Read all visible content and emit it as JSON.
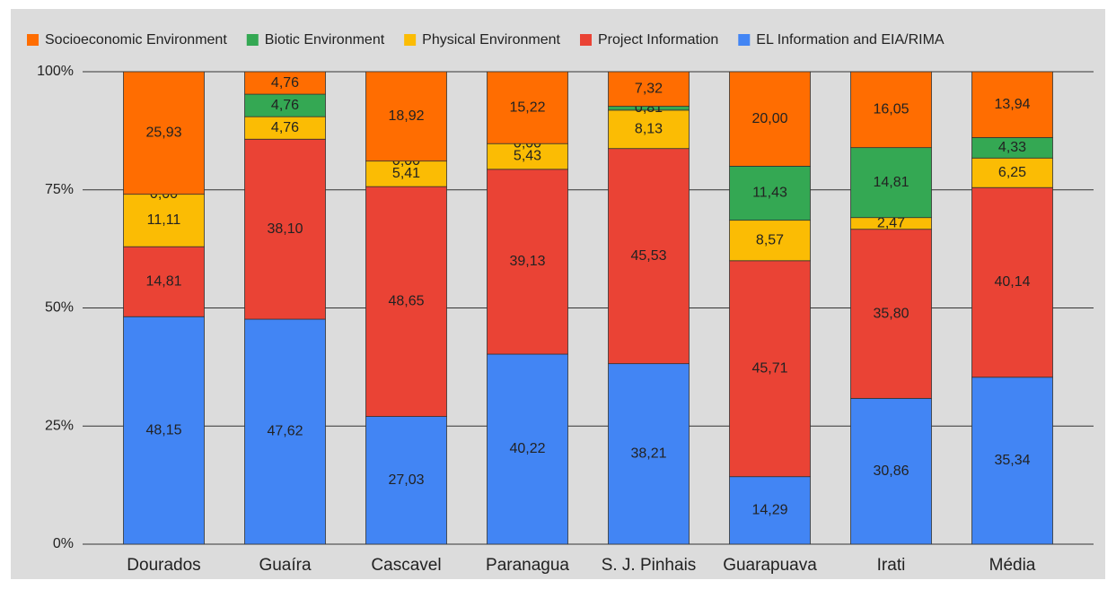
{
  "chart_data": {
    "type": "stacked_bar",
    "categories": [
      "Dourados",
      "Guaíra",
      "Cascavel",
      "Paranagua",
      "S. J. Pinhais",
      "Guarapuava",
      "Irati",
      "Média"
    ],
    "series": [
      {
        "name": "EL Information and EIA/RIMA",
        "color": "#4285f4",
        "values": [
          48.15,
          47.62,
          27.03,
          40.22,
          38.21,
          14.29,
          30.86,
          35.34
        ],
        "value_labels": [
          "48,15",
          "47,62",
          "27,03",
          "40,22",
          "38,21",
          "14,29",
          "30,86",
          "35,34"
        ]
      },
      {
        "name": "Project Information",
        "color": "#ea4335",
        "values": [
          14.81,
          38.1,
          48.65,
          39.13,
          45.53,
          45.71,
          35.8,
          40.14
        ],
        "value_labels": [
          "14,81",
          "38,10",
          "48,65",
          "39,13",
          "45,53",
          "45,71",
          "35,80",
          "40,14"
        ]
      },
      {
        "name": "Physical Environment",
        "color": "#fbbc04",
        "values": [
          11.11,
          4.76,
          5.41,
          5.43,
          8.13,
          8.57,
          2.47,
          6.25
        ],
        "value_labels": [
          "11,11",
          "4,76",
          "5,41",
          "5,43",
          "8,13",
          "8,57",
          "2,47",
          "6,25"
        ]
      },
      {
        "name": "Biotic Environment",
        "color": "#34a853",
        "values": [
          0.0,
          4.76,
          0.0,
          0.0,
          0.81,
          11.43,
          14.81,
          4.33
        ],
        "value_labels": [
          "0,00",
          "4,76",
          "0,00",
          "0,00",
          "0,81",
          "11,43",
          "14,81",
          "4,33"
        ]
      },
      {
        "name": "Socioeconomic Environment",
        "color": "#ff6d01",
        "values": [
          25.93,
          4.76,
          18.92,
          15.22,
          7.32,
          20.0,
          16.05,
          13.94
        ],
        "value_labels": [
          "25,93",
          "4,76",
          "18,92",
          "15,22",
          "7,32",
          "20,00",
          "16,05",
          "13,94"
        ]
      }
    ],
    "ylim": [
      0,
      100
    ],
    "yticks": [
      {
        "value": 0,
        "label": "0%"
      },
      {
        "value": 25,
        "label": "25%"
      },
      {
        "value": 50,
        "label": "50%"
      },
      {
        "value": 75,
        "label": "75%"
      },
      {
        "value": 100,
        "label": "100%"
      }
    ],
    "grid": true,
    "legend": "top"
  }
}
